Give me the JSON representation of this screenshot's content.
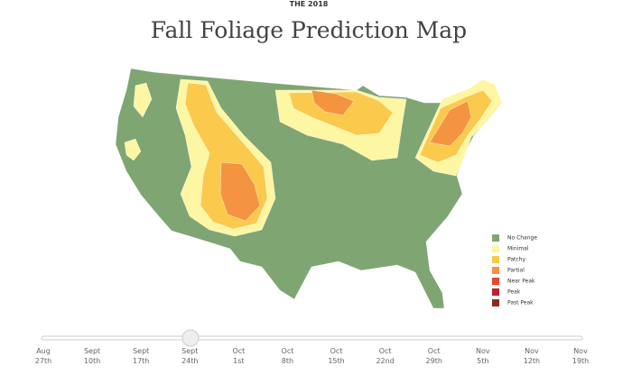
{
  "header": {
    "kicker": "THE 2018",
    "title": "Fall Foliage Prediction Map"
  },
  "legend": [
    {
      "label": "No Change",
      "color": "#7fa573"
    },
    {
      "label": "Minimal",
      "color": "#fdf6a3"
    },
    {
      "label": "Patchy",
      "color": "#fbc94c"
    },
    {
      "label": "Partial",
      "color": "#f59440"
    },
    {
      "label": "Near Peak",
      "color": "#e8472b"
    },
    {
      "label": "Peak",
      "color": "#c21f30"
    },
    {
      "label": "Past Peak",
      "color": "#8c2a1e"
    }
  ],
  "slider": {
    "ticks": [
      {
        "month": "Aug",
        "day": "27th"
      },
      {
        "month": "Sept",
        "day": "10th"
      },
      {
        "month": "Sept",
        "day": "17th"
      },
      {
        "month": "Sept",
        "day": "24th"
      },
      {
        "month": "Oct",
        "day": "1st"
      },
      {
        "month": "Oct",
        "day": "8th"
      },
      {
        "month": "Oct",
        "day": "15th"
      },
      {
        "month": "Oct",
        "day": "22nd"
      },
      {
        "month": "Oct",
        "day": "29th"
      },
      {
        "month": "Nov",
        "day": "5th"
      },
      {
        "month": "Nov",
        "day": "12th"
      },
      {
        "month": "Nov",
        "day": "19th"
      }
    ]
  }
}
